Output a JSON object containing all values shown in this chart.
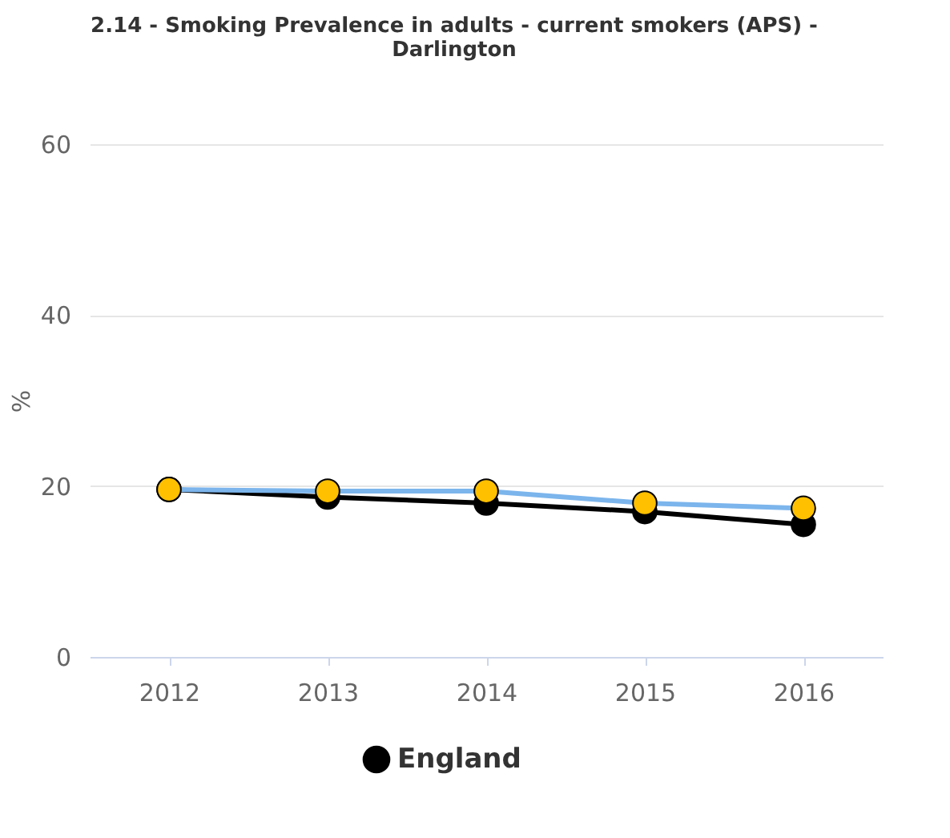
{
  "chart_data": {
    "type": "line",
    "title": [
      "2.14 - Smoking Prevalence in adults - current smokers (APS) -",
      "Darlington"
    ],
    "ylabel": "%",
    "categories": [
      "2012",
      "2013",
      "2014",
      "2015",
      "2016"
    ],
    "series": [
      {
        "name": "England",
        "color": "#000000",
        "values": [
          19.6,
          18.7,
          18.0,
          17.0,
          15.5
        ]
      },
      {
        "color": "#7cb5ec",
        "colors": [
          "#ffc000",
          "#ffc000",
          "#ffc000",
          "#ffc000",
          "#ffc000"
        ],
        "values": [
          19.6,
          19.4,
          19.4,
          18.0,
          17.4
        ]
      }
    ],
    "ylim": [
      0,
      60
    ],
    "yticks": [
      0,
      20,
      40,
      60
    ],
    "grid": "y",
    "legend": "bottom",
    "marker": "circle"
  }
}
